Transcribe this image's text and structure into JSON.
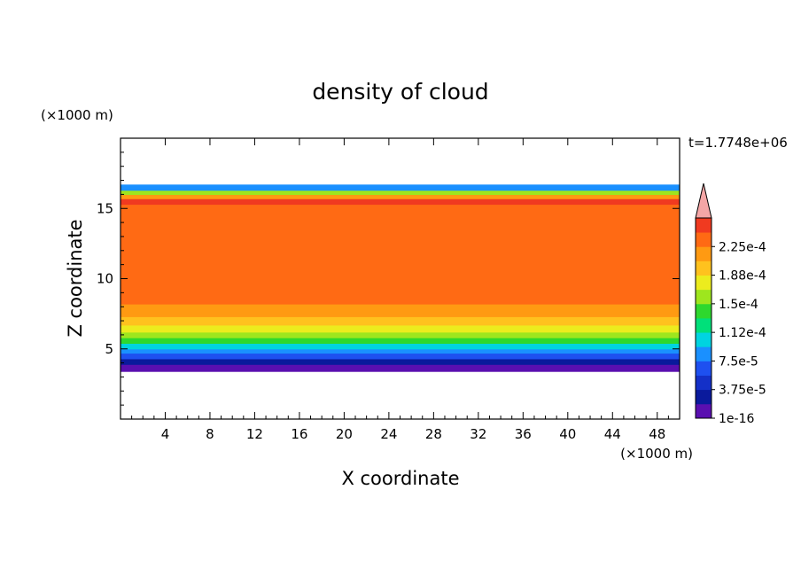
{
  "chart_data": {
    "type": "heatmap",
    "title": "density of cloud",
    "xlabel": "X coordinate",
    "ylabel": "Z coordinate",
    "x_unit": "(×1000 m)",
    "y_unit": "(×1000 m)",
    "time_label": "t=1.7748e+06",
    "xlim": [
      0,
      50
    ],
    "ylim": [
      0,
      20
    ],
    "x_ticks": [
      4,
      8,
      12,
      16,
      20,
      24,
      28,
      32,
      36,
      40,
      44,
      48
    ],
    "y_ticks": [
      5,
      10,
      15
    ],
    "cloud_base_km": 3.4,
    "cloud_top_km": 16.7,
    "colorbar": {
      "levels": [
        "1e-16",
        "",
        "3.75e-5",
        "",
        "7.5e-5",
        "",
        "1.12e-4",
        "",
        "1.5e-4",
        "",
        "1.88e-4",
        "",
        "2.25e-4",
        ""
      ],
      "colors": [
        "#5a0fb0",
        "#0a1a9c",
        "#1430c8",
        "#1e50f0",
        "#1a90ff",
        "#00d4e0",
        "#00e07a",
        "#2ed82e",
        "#9ee61e",
        "#ecec1e",
        "#ffc21e",
        "#ff9a12",
        "#ff6a14",
        "#f03a20"
      ],
      "over_color": "#f4a6a6",
      "labeled": [
        "1e-16",
        "3.75e-5",
        "7.5e-5",
        "1.12e-4",
        "1.5e-4",
        "1.88e-4",
        "2.25e-4"
      ]
    },
    "vertical_profile": [
      {
        "z": 3.4,
        "level": 0
      },
      {
        "z": 3.9,
        "level": 1
      },
      {
        "z": 4.3,
        "level": 3
      },
      {
        "z": 4.7,
        "level": 4
      },
      {
        "z": 5.0,
        "level": 5
      },
      {
        "z": 5.4,
        "level": 7
      },
      {
        "z": 5.8,
        "level": 8
      },
      {
        "z": 6.2,
        "level": 9
      },
      {
        "z": 6.7,
        "level": 10
      },
      {
        "z": 7.3,
        "level": 11
      },
      {
        "z": 8.2,
        "level": 12
      },
      {
        "z": 15.3,
        "level": 13
      },
      {
        "z": 15.7,
        "level": 11
      },
      {
        "z": 16.0,
        "level": 8
      },
      {
        "z": 16.3,
        "level": 4
      },
      {
        "z": 16.7,
        "level": 0
      }
    ]
  }
}
